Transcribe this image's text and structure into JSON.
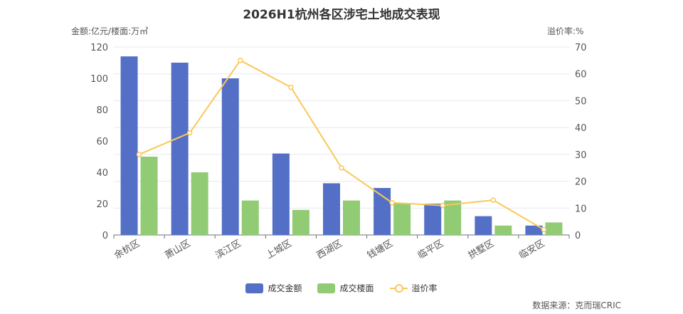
{
  "chart_data": {
    "type": "bar",
    "title": "2026H1杭州各区涉宅土地成交表现",
    "ylabel_left": "金额:亿元/楼面:万㎡",
    "ylabel_right": "溢价率:%",
    "categories": [
      "余杭区",
      "萧山区",
      "滨江区",
      "上城区",
      "西湖区",
      "钱塘区",
      "临平区",
      "拱墅区",
      "临安区"
    ],
    "series": [
      {
        "name": "成交金额",
        "type": "bar",
        "axis": "left",
        "color": "#5470c6",
        "values": [
          114,
          110,
          100,
          52,
          33,
          30,
          20,
          12,
          6
        ]
      },
      {
        "name": "成交楼面",
        "type": "bar",
        "axis": "left",
        "color": "#91cc75",
        "values": [
          50,
          40,
          22,
          16,
          22,
          20,
          22,
          6,
          8
        ]
      },
      {
        "name": "溢价率",
        "type": "line",
        "axis": "right",
        "color": "#fac858",
        "values": [
          30,
          38,
          65,
          55,
          25,
          12,
          11,
          13,
          2
        ]
      }
    ],
    "y_left": {
      "min": 0,
      "max": 120,
      "ticks": [
        0,
        20,
        40,
        60,
        80,
        100,
        120
      ]
    },
    "y_right": {
      "min": 0,
      "max": 70,
      "ticks": [
        0,
        10,
        20,
        30,
        40,
        50,
        60,
        70
      ]
    },
    "legend_position": "bottom-center",
    "grid": true
  },
  "source": "数据来源：克而瑞CRIC"
}
